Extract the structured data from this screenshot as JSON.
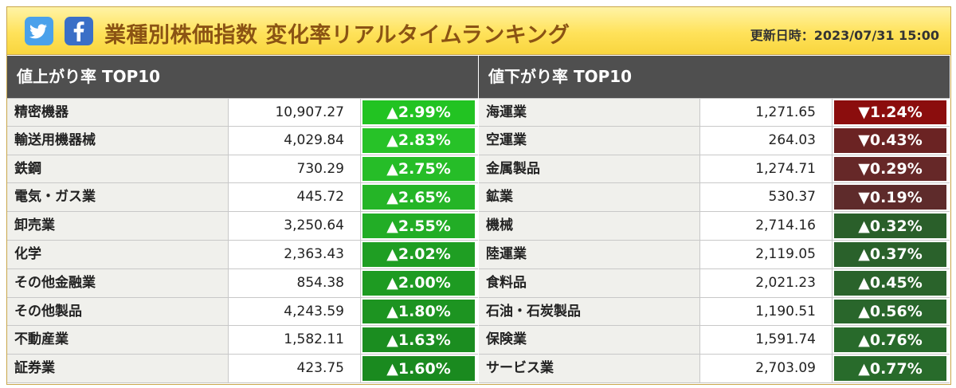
{
  "header": {
    "title": "業種別株価指数 変化率リアルタイムランキング",
    "updated": "更新日時：2023/07/31 15:00",
    "twitter_icon": "twitter-icon",
    "facebook_icon": "facebook-icon"
  },
  "gainers": {
    "heading": "値上がり率 TOP10",
    "rows": [
      {
        "name": "精密機器",
        "value": "10,907.27",
        "change": "▲2.99%",
        "color": "#22c322"
      },
      {
        "name": "輸送用機器械",
        "value": "4,029.84",
        "change": "▲2.83%",
        "color": "#27c228"
      },
      {
        "name": "鉄鋼",
        "value": "730.29",
        "change": "▲2.75%",
        "color": "#26bd28"
      },
      {
        "name": "電気・ガス業",
        "value": "445.72",
        "change": "▲2.65%",
        "color": "#25b527"
      },
      {
        "name": "卸売業",
        "value": "3,250.64",
        "change": "▲2.55%",
        "color": "#22ad26"
      },
      {
        "name": "化学",
        "value": "2,363.43",
        "change": "▲2.02%",
        "color": "#1f9e23"
      },
      {
        "name": "その他金融業",
        "value": "854.38",
        "change": "▲2.00%",
        "color": "#1e9b22"
      },
      {
        "name": "その他製品",
        "value": "4,243.59",
        "change": "▲1.80%",
        "color": "#1d9421"
      },
      {
        "name": "不動産業",
        "value": "1,582.11",
        "change": "▲1.63%",
        "color": "#1b8d20"
      },
      {
        "name": "証券業",
        "value": "423.75",
        "change": "▲1.60%",
        "color": "#1a8a1f"
      }
    ]
  },
  "losers": {
    "heading": "値下がり率 TOP10",
    "rows": [
      {
        "name": "海運業",
        "value": "1,271.65",
        "change": "▼1.24%",
        "color": "#8b0d0d"
      },
      {
        "name": "空運業",
        "value": "264.03",
        "change": "▼0.43%",
        "color": "#6b2323"
      },
      {
        "name": "金属製品",
        "value": "1,274.71",
        "change": "▼0.29%",
        "color": "#662828"
      },
      {
        "name": "鉱業",
        "value": "530.37",
        "change": "▼0.19%",
        "color": "#5e2b2b"
      },
      {
        "name": "機械",
        "value": "2,714.16",
        "change": "▲0.32%",
        "color": "#2a5f2a"
      },
      {
        "name": "陸運業",
        "value": "2,119.05",
        "change": "▲0.37%",
        "color": "#2a612b"
      },
      {
        "name": "食料品",
        "value": "2,021.23",
        "change": "▲0.45%",
        "color": "#2a632b"
      },
      {
        "name": "石油・石炭製品",
        "value": "1,190.51",
        "change": "▲0.56%",
        "color": "#29662b"
      },
      {
        "name": "保険業",
        "value": "1,591.74",
        "change": "▲0.76%",
        "color": "#286a2b"
      },
      {
        "name": "サービス業",
        "value": "2,703.09",
        "change": "▲0.77%",
        "color": "#286b2b"
      }
    ]
  }
}
